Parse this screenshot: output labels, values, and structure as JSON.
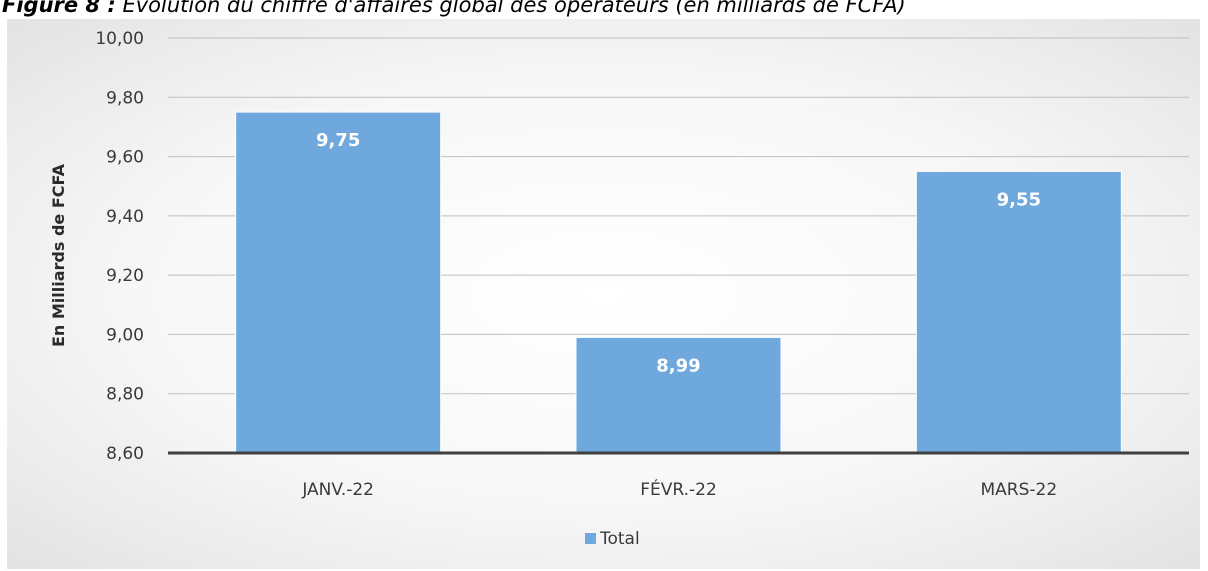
{
  "caption": {
    "label": "Figure 8 :",
    "text": "Evolution du chiffre d'affaires global des opérateurs (en milliards de FCFA)"
  },
  "colors": {
    "bar": "#6fa8dc",
    "bar_stroke": "#ffffff",
    "grid": "#bfbfbf",
    "baseline": "#404040"
  },
  "chart_data": {
    "type": "bar",
    "categories": [
      "JANV.-22",
      "FÉVR.-22",
      "MARS-22"
    ],
    "series": [
      {
        "name": "Total",
        "values": [
          9.75,
          8.99,
          9.55
        ],
        "labels": [
          "9,75",
          "8,99",
          "9,55"
        ]
      }
    ],
    "ylabel": "En Milliards de FCFA",
    "ylim": [
      8.6,
      10.0
    ],
    "yticks": [
      8.6,
      8.8,
      9.0,
      9.2,
      9.4,
      9.6,
      9.8,
      10.0
    ],
    "ytick_labels": [
      "8,60",
      "8,80",
      "9,00",
      "9,20",
      "9,40",
      "9,60",
      "9,80",
      "10,00"
    ],
    "grid": true,
    "legend": "bottom"
  }
}
